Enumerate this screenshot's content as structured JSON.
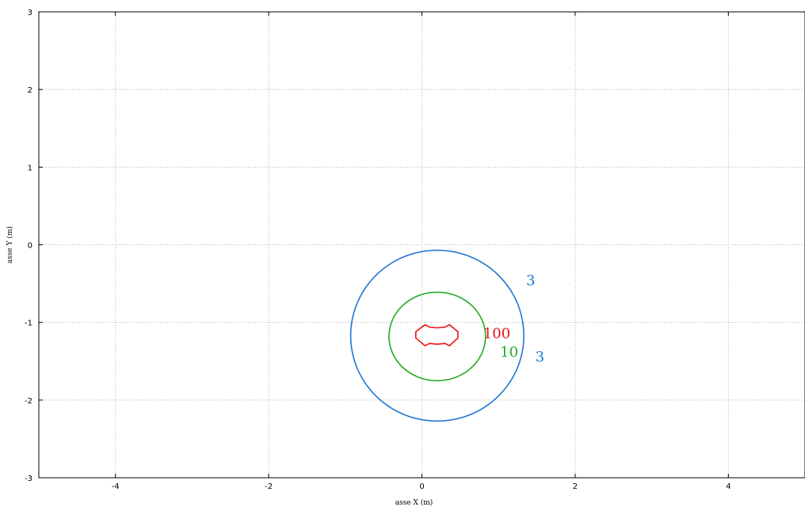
{
  "chart_data": {
    "type": "line",
    "subtype": "contour",
    "title": "",
    "xlabel": "asse X (m)",
    "ylabel": "asse Y (m)",
    "xlim": [
      -5,
      5
    ],
    "ylim": [
      -3,
      3
    ],
    "xticks": [
      -4,
      -2,
      0,
      2,
      4
    ],
    "yticks": [
      3,
      2,
      1,
      0,
      -1,
      -2,
      -3
    ],
    "grid": true,
    "legend": "none",
    "series": [
      {
        "color": "#1f77d4",
        "label": "3",
        "center": [
          0.2,
          -1.17
        ],
        "radius_x": 1.13,
        "radius_y": 1.1
      },
      {
        "color": "#22aa22",
        "label": "10",
        "center": [
          0.2,
          -1.18
        ],
        "radius_x": 0.63,
        "radius_y": 0.57
      },
      {
        "color": "#ee1111",
        "label": "100",
        "points": [
          [
            0.04,
            -1.03
          ],
          [
            0.1,
            -1.06
          ],
          [
            0.2,
            -1.07
          ],
          [
            0.3,
            -1.06
          ],
          [
            0.36,
            -1.03
          ],
          [
            0.47,
            -1.12
          ],
          [
            0.47,
            -1.2
          ],
          [
            0.36,
            -1.3
          ],
          [
            0.3,
            -1.27
          ],
          [
            0.2,
            -1.28
          ],
          [
            0.1,
            -1.27
          ],
          [
            0.04,
            -1.3
          ],
          [
            -0.08,
            -1.2
          ],
          [
            -0.08,
            -1.12
          ]
        ]
      }
    ],
    "annotations": [
      {
        "text": "3",
        "x": 1.36,
        "y": -0.52,
        "color": "#1f77d4"
      },
      {
        "text": "100",
        "x": 0.8,
        "y": -1.2,
        "color": "#ee1111"
      },
      {
        "text": "10",
        "x": 1.02,
        "y": -1.44,
        "color": "#22aa22"
      },
      {
        "text": "3",
        "x": 1.48,
        "y": -1.5,
        "color": "#1f77d4"
      }
    ]
  }
}
